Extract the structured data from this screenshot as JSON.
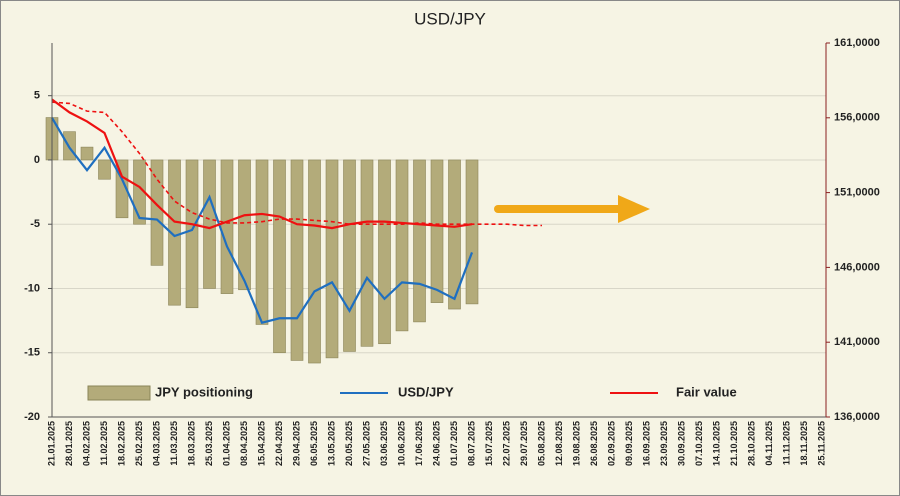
{
  "chart_data": {
    "type": "bar_line",
    "title": "USD/JPY",
    "categories": [
      "21.01.2025",
      "28.01.2025",
      "04.02.2025",
      "11.02.2025",
      "18.02.2025",
      "25.02.2025",
      "04.03.2025",
      "11.03.2025",
      "18.03.2025",
      "25.03.2025",
      "01.04.2025",
      "08.04.2025",
      "15.04.2025",
      "22.04.2025",
      "29.04.2025",
      "06.05.2025",
      "13.05.2025",
      "20.05.2025",
      "27.05.2025",
      "03.06.2025",
      "10.06.2025",
      "17.06.2025",
      "24.06.2025",
      "01.07.2025",
      "08.07.2025",
      "15.07.2025",
      "22.07.2025",
      "29.07.2025",
      "05.08.2025",
      "12.08.2025",
      "19.08.2025",
      "26.08.2025",
      "02.09.2025",
      "09.09.2025",
      "16.09.2025",
      "23.09.2025",
      "30.09.2025",
      "07.10.2025",
      "14.10.2025",
      "21.10.2025",
      "28.10.2025",
      "04.11.2025",
      "11.11.2025",
      "18.11.2025",
      "25.11.2025"
    ],
    "series": [
      {
        "name": "JPY positioning",
        "kind": "bar",
        "color": "#b3ab7a",
        "axis": "y",
        "values": [
          3.3,
          2.2,
          1.0,
          -1.5,
          -4.5,
          -5.0,
          -8.2,
          -11.3,
          -11.5,
          -10.0,
          -10.4,
          -10.1,
          -12.8,
          -15.0,
          -15.6,
          -15.8,
          -15.4,
          -14.9,
          -14.5,
          -14.3,
          -13.3,
          -12.6,
          -11.1,
          -11.6,
          -11.2,
          null,
          null,
          null,
          null,
          null,
          null,
          null,
          null,
          null,
          null,
          null,
          null,
          null,
          null,
          null,
          null,
          null,
          null,
          null,
          null
        ]
      },
      {
        "name": "USD/JPY",
        "kind": "line",
        "color": "#1f6fc0",
        "axis": "y2",
        "values": [
          156.0,
          154.0,
          152.5,
          154.0,
          151.9,
          149.3,
          149.2,
          148.1,
          148.5,
          150.7,
          147.4,
          145.1,
          142.3,
          142.6,
          142.6,
          144.4,
          145.0,
          143.1,
          145.3,
          143.9,
          145.0,
          144.9,
          144.5,
          143.9,
          147.0,
          null,
          null,
          null,
          null,
          null,
          null,
          null,
          null,
          null,
          null,
          null,
          null,
          null,
          null,
          null,
          null,
          null,
          null,
          null,
          null
        ]
      },
      {
        "name": "Fair value",
        "kind": "line",
        "color": "#ee1111",
        "axis": "y",
        "values": [
          4.7,
          3.7,
          3.0,
          2.1,
          -1.3,
          -2.1,
          -3.5,
          -4.8,
          -5.0,
          -5.3,
          -4.8,
          -4.3,
          -4.2,
          -4.4,
          -5.0,
          -5.1,
          -5.3,
          -5.0,
          -4.8,
          -4.8,
          -4.9,
          -5.0,
          -5.1,
          -5.2,
          -5.0,
          null,
          null,
          null,
          null,
          null,
          null,
          null,
          null,
          null,
          null,
          null,
          null,
          null,
          null,
          null,
          null,
          null,
          null,
          null,
          null
        ]
      },
      {
        "kind": "dashed",
        "color": "#ee1111",
        "axis": "y",
        "values": [
          4.5,
          4.4,
          3.8,
          3.7,
          2.2,
          0.5,
          -1.5,
          -3.2,
          -4.1,
          -4.6,
          -4.9,
          -4.9,
          -4.8,
          -4.6,
          -4.6,
          -4.7,
          -4.8,
          -5.0,
          -5.0,
          -5.0,
          -5.0,
          -4.9,
          -5.0,
          -5.0,
          -5.0,
          -5.0,
          -5.0,
          -5.1,
          -5.1,
          null,
          null,
          null,
          null,
          null,
          null,
          null,
          null,
          null,
          null,
          null,
          null,
          null,
          null,
          null,
          null
        ]
      }
    ],
    "ylim": [
      -20,
      9.1
    ],
    "yticks": [
      -20,
      -15,
      -10,
      -5,
      0,
      5
    ],
    "y2lim": [
      136,
      161
    ],
    "y2ticks": [
      {
        "value": 136,
        "label": "136,0000"
      },
      {
        "value": 141,
        "label": "141,0000"
      },
      {
        "value": 146,
        "label": "146,0000"
      },
      {
        "value": 151,
        "label": "151,0000"
      },
      {
        "value": 156,
        "label": "156,0000"
      },
      {
        "value": 161,
        "label": "161,0000"
      }
    ],
    "grid": true
  }
}
